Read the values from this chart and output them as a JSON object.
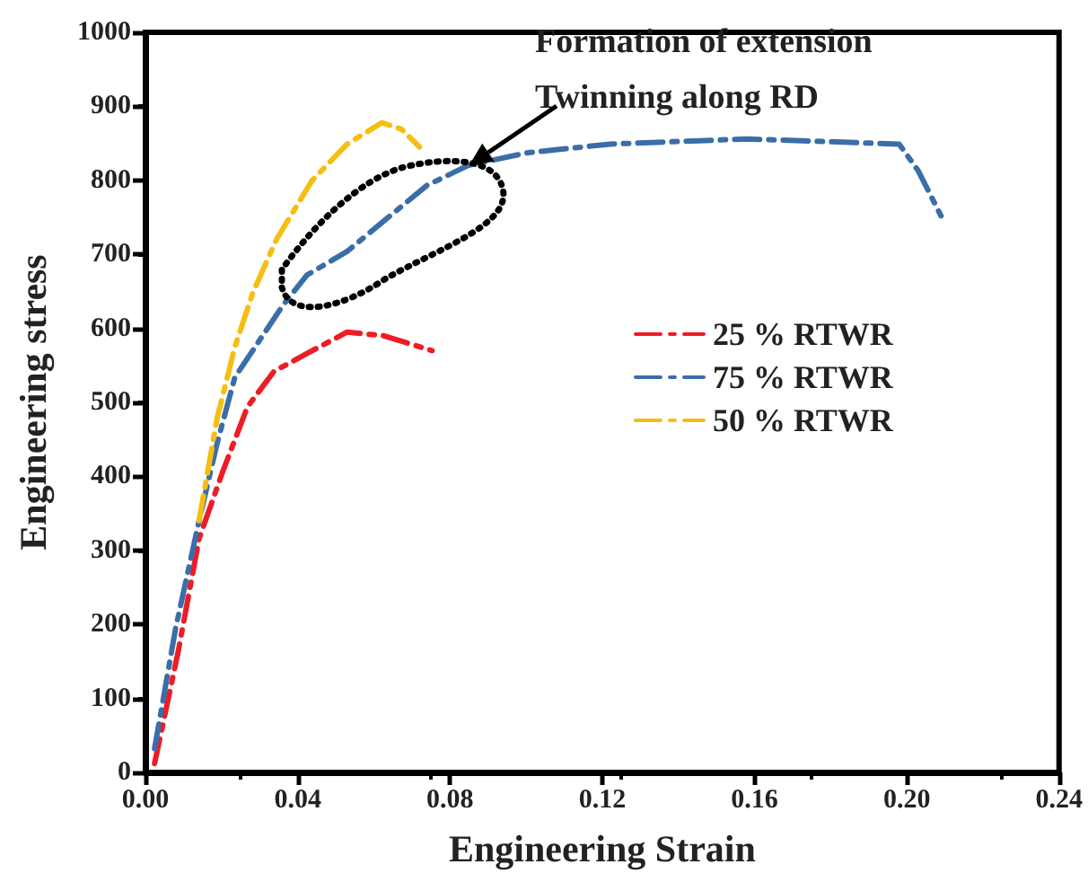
{
  "chart_data": {
    "type": "line",
    "xlabel": "Engineering Strain",
    "ylabel": "Engineering stress",
    "annotations": [
      {
        "text": "Formation of extension\nTwinning along RD",
        "x": 0.085,
        "y": 820
      }
    ],
    "xlim": [
      0,
      0.24
    ],
    "xticks": [
      {
        "value": 0,
        "label": "0.00"
      },
      {
        "value": 0.04,
        "label": "0.04"
      },
      {
        "value": 0.08,
        "label": "0.08"
      },
      {
        "value": 0.12,
        "label": "0.12"
      },
      {
        "value": 0.16,
        "label": "0.16"
      },
      {
        "value": 0.2,
        "label": "0.20"
      },
      {
        "value": 0.24,
        "label": "0.24"
      }
    ],
    "ylim": [
      0,
      1000
    ],
    "yticks": [
      0,
      100,
      200,
      300,
      400,
      500,
      600,
      700,
      800,
      900,
      1000
    ],
    "grid": false,
    "legend": "right",
    "marker": "none",
    "line_style": "dashed",
    "series": [
      {
        "name": "25 % RTWR",
        "color": "#ee1c25",
        "x": [
          0.0024,
          0.0086,
          0.0141,
          0.0202,
          0.0268,
          0.0338,
          0.0424,
          0.053,
          0.0626,
          0.0753
        ],
        "values": [
          12,
          163,
          316,
          405,
          494,
          542,
          566,
          595,
          590,
          570
        ]
      },
      {
        "name": "75 % RTWR",
        "color": "#3a6ea8",
        "x": [
          0.0024,
          0.0079,
          0.0141,
          0.0188,
          0.0235,
          0.0361,
          0.0424,
          0.053,
          0.0626,
          0.0739,
          0.0847,
          0.1,
          0.122,
          0.158,
          0.198,
          0.203,
          0.209
        ],
        "values": [
          32,
          194,
          340,
          444,
          534,
          631,
          672,
          704,
          745,
          793,
          820,
          837,
          849,
          856,
          849,
          813,
          752
        ]
      },
      {
        "name": "50 % RTWR",
        "color": "#f5be12",
        "x": [
          0.0141,
          0.0188,
          0.0235,
          0.0282,
          0.0344,
          0.0438,
          0.053,
          0.0621,
          0.0673,
          0.072
        ],
        "values": [
          340,
          478,
          575,
          648,
          720,
          800,
          849,
          878,
          869,
          845
        ]
      }
    ]
  }
}
